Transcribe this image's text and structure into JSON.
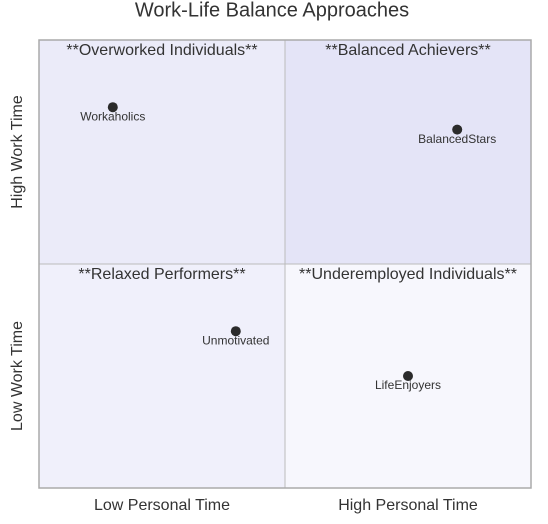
{
  "chart_data": {
    "type": "quadrant",
    "title": "Work-Life Balance Approaches",
    "quadrants": [
      {
        "label": "**Overworked Individuals**",
        "color": "#ebebf9"
      },
      {
        "label": "**Balanced Achievers**",
        "color": "#e4e4f7"
      },
      {
        "label": "**Relaxed Performers**",
        "color": "#f0f0fb"
      },
      {
        "label": "**Underemployed Individuals**",
        "color": "#f7f7fd"
      }
    ],
    "x_axis_labels": [
      "Low Personal Time",
      "High Personal Time"
    ],
    "y_axis_labels": [
      "Low Work Time",
      "High Work Time"
    ],
    "points": [
      {
        "name": "Workaholics",
        "x": 0.15,
        "y": 0.85
      },
      {
        "name": "BalancedStars",
        "x": 0.85,
        "y": 0.8
      },
      {
        "name": "Unmotivated",
        "x": 0.4,
        "y": 0.35
      },
      {
        "name": "LifeEnjoyers",
        "x": 0.75,
        "y": 0.25
      }
    ],
    "point_color": "#2b2b2b",
    "xlim": [
      0,
      1
    ],
    "ylim": [
      0,
      1
    ]
  }
}
